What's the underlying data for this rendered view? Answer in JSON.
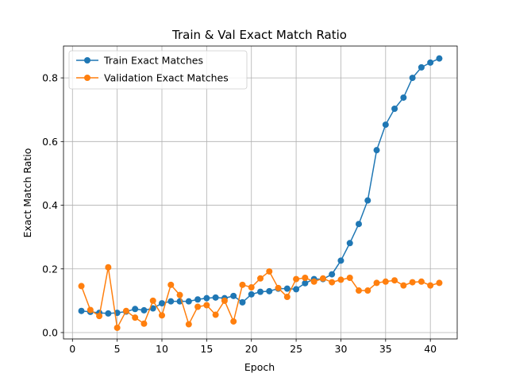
{
  "chart_data": {
    "type": "line",
    "title": "Train & Val Exact Match Ratio",
    "xlabel": "Epoch",
    "ylabel": "Exact Match Ratio",
    "xlim": [
      -1,
      43
    ],
    "ylim": [
      -0.02,
      0.9
    ],
    "xticks": [
      0,
      5,
      10,
      15,
      20,
      25,
      30,
      35,
      40
    ],
    "xtick_labels": [
      "0",
      "5",
      "10",
      "15",
      "20",
      "25",
      "30",
      "35",
      "40"
    ],
    "yticks": [
      0.0,
      0.2,
      0.4,
      0.6,
      0.8
    ],
    "ytick_labels": [
      "0.0",
      "0.2",
      "0.4",
      "0.6",
      "0.8"
    ],
    "grid": true,
    "legend_position": "upper-left",
    "x": [
      1,
      2,
      3,
      4,
      5,
      6,
      7,
      8,
      9,
      10,
      11,
      12,
      13,
      14,
      15,
      16,
      17,
      18,
      19,
      20,
      21,
      22,
      23,
      24,
      25,
      26,
      27,
      28,
      29,
      30,
      31,
      32,
      33,
      34,
      35,
      36,
      37,
      38,
      39,
      40,
      41
    ],
    "series": [
      {
        "name": "Train Exact Matches",
        "color": "#1f77b4",
        "marker": "circle",
        "values": [
          0.068,
          0.065,
          0.062,
          0.06,
          0.062,
          0.066,
          0.074,
          0.07,
          0.076,
          0.092,
          0.098,
          0.098,
          0.098,
          0.104,
          0.108,
          0.11,
          0.108,
          0.115,
          0.095,
          0.12,
          0.128,
          0.13,
          0.138,
          0.138,
          0.136,
          0.155,
          0.168,
          0.168,
          0.183,
          0.226,
          0.281,
          0.341,
          0.415,
          0.573,
          0.653,
          0.703,
          0.738,
          0.8,
          0.833,
          0.848,
          0.861
        ]
      },
      {
        "name": "Validation Exact Matches",
        "color": "#ff7f0e",
        "marker": "circle",
        "values": [
          0.146,
          0.071,
          0.052,
          0.205,
          0.015,
          0.068,
          0.047,
          0.028,
          0.1,
          0.054,
          0.15,
          0.118,
          0.026,
          0.081,
          0.086,
          0.056,
          0.1,
          0.035,
          0.15,
          0.142,
          0.17,
          0.192,
          0.14,
          0.112,
          0.168,
          0.172,
          0.16,
          0.17,
          0.158,
          0.166,
          0.172,
          0.132,
          0.132,
          0.156,
          0.16,
          0.164,
          0.148,
          0.158,
          0.16,
          0.148,
          0.156
        ]
      }
    ]
  }
}
